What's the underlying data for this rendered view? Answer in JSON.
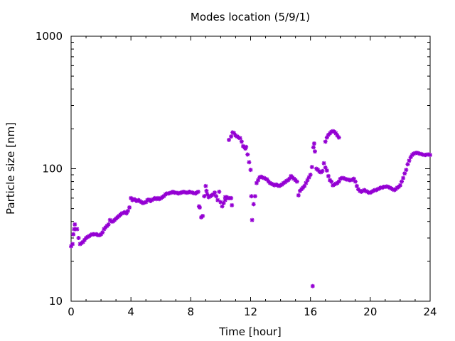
{
  "chart_data": {
    "type": "scatter",
    "title": "Modes location (5/9/1)",
    "xlabel": "Time [hour]",
    "ylabel": "Particle size [nm]",
    "xlim": [
      0,
      24
    ],
    "ylim": [
      10,
      1000
    ],
    "yscale": "log",
    "xticks": [
      0,
      4,
      8,
      12,
      16,
      20,
      24
    ],
    "xtick_labels": [
      "0",
      "4",
      "8",
      "12",
      "16",
      "20",
      "24"
    ],
    "yticks": [
      10,
      100,
      1000
    ],
    "ytick_labels": [
      "10",
      "100",
      "1000"
    ],
    "grid": false,
    "legend": "none",
    "colors": {
      "marker": "#9400d3",
      "axes": "#000000",
      "background": "#ffffff"
    },
    "series": [
      {
        "points": [
          [
            0.0,
            26
          ],
          [
            0.1,
            27
          ],
          [
            0.15,
            32
          ],
          [
            0.2,
            35
          ],
          [
            0.25,
            38
          ],
          [
            0.3,
            35
          ],
          [
            0.4,
            35
          ],
          [
            0.5,
            30
          ],
          [
            0.6,
            27
          ],
          [
            0.7,
            27.5
          ],
          [
            0.8,
            28
          ],
          [
            0.9,
            29
          ],
          [
            1.0,
            30
          ],
          [
            1.1,
            30.5
          ],
          [
            1.2,
            31
          ],
          [
            1.3,
            31.5
          ],
          [
            1.4,
            32
          ],
          [
            1.5,
            32
          ],
          [
            1.6,
            32
          ],
          [
            1.7,
            32
          ],
          [
            1.8,
            31.5
          ],
          [
            1.9,
            31.5
          ],
          [
            2.0,
            32
          ],
          [
            2.1,
            33
          ],
          [
            2.2,
            35
          ],
          [
            2.3,
            36
          ],
          [
            2.4,
            37
          ],
          [
            2.5,
            38
          ],
          [
            2.6,
            41
          ],
          [
            2.7,
            40
          ],
          [
            2.8,
            40
          ],
          [
            2.9,
            41
          ],
          [
            3.0,
            42
          ],
          [
            3.1,
            43
          ],
          [
            3.2,
            44
          ],
          [
            3.3,
            45
          ],
          [
            3.4,
            46
          ],
          [
            3.5,
            46.5
          ],
          [
            3.6,
            47
          ],
          [
            3.7,
            46
          ],
          [
            3.8,
            48
          ],
          [
            3.9,
            51
          ],
          [
            4.0,
            60
          ],
          [
            4.1,
            58
          ],
          [
            4.2,
            59
          ],
          [
            4.3,
            58
          ],
          [
            4.4,
            57
          ],
          [
            4.5,
            58
          ],
          [
            4.6,
            57
          ],
          [
            4.7,
            56
          ],
          [
            4.8,
            55
          ],
          [
            4.9,
            55.5
          ],
          [
            5.0,
            56
          ],
          [
            5.1,
            58
          ],
          [
            5.2,
            58.5
          ],
          [
            5.3,
            57
          ],
          [
            5.4,
            58
          ],
          [
            5.5,
            59
          ],
          [
            5.6,
            60
          ],
          [
            5.7,
            59
          ],
          [
            5.8,
            60
          ],
          [
            5.9,
            59
          ],
          [
            6.0,
            60
          ],
          [
            6.1,
            61
          ],
          [
            6.2,
            62
          ],
          [
            6.3,
            64
          ],
          [
            6.4,
            65
          ],
          [
            6.5,
            65
          ],
          [
            6.6,
            65.5
          ],
          [
            6.7,
            66
          ],
          [
            6.8,
            67
          ],
          [
            6.9,
            66
          ],
          [
            7.0,
            66
          ],
          [
            7.1,
            65.5
          ],
          [
            7.2,
            65
          ],
          [
            7.3,
            66
          ],
          [
            7.4,
            66
          ],
          [
            7.5,
            67
          ],
          [
            7.6,
            66.5
          ],
          [
            7.7,
            66
          ],
          [
            7.8,
            66
          ],
          [
            7.9,
            67
          ],
          [
            8.0,
            66.5
          ],
          [
            8.1,
            66
          ],
          [
            8.2,
            65.5
          ],
          [
            8.3,
            65
          ],
          [
            8.4,
            66
          ],
          [
            8.5,
            67
          ],
          [
            8.55,
            52
          ],
          [
            8.6,
            51
          ],
          [
            8.7,
            43
          ],
          [
            8.8,
            44
          ],
          [
            8.9,
            62
          ],
          [
            9.0,
            74
          ],
          [
            9.05,
            68
          ],
          [
            9.1,
            64
          ],
          [
            9.2,
            61
          ],
          [
            9.3,
            62
          ],
          [
            9.4,
            63
          ],
          [
            9.5,
            64
          ],
          [
            9.6,
            66
          ],
          [
            9.7,
            62
          ],
          [
            9.8,
            58
          ],
          [
            9.9,
            67
          ],
          [
            10.0,
            56
          ],
          [
            10.1,
            52
          ],
          [
            10.2,
            55
          ],
          [
            10.3,
            61
          ],
          [
            10.4,
            61
          ],
          [
            10.5,
            60
          ],
          [
            10.6,
            60
          ],
          [
            10.7,
            60
          ],
          [
            10.75,
            53
          ],
          [
            10.3,
            58
          ],
          [
            10.55,
            165
          ],
          [
            10.7,
            175
          ],
          [
            10.8,
            188
          ],
          [
            10.9,
            185
          ],
          [
            11.0,
            178
          ],
          [
            11.1,
            175
          ],
          [
            11.2,
            172
          ],
          [
            11.3,
            170
          ],
          [
            11.4,
            160
          ],
          [
            11.5,
            148
          ],
          [
            11.6,
            145
          ],
          [
            11.65,
            142
          ],
          [
            11.7,
            146
          ],
          [
            11.8,
            128
          ],
          [
            11.9,
            112
          ],
          [
            12.0,
            98
          ],
          [
            12.05,
            62
          ],
          [
            12.1,
            41
          ],
          [
            12.2,
            54
          ],
          [
            12.3,
            62
          ],
          [
            12.4,
            78
          ],
          [
            12.5,
            82
          ],
          [
            12.6,
            86
          ],
          [
            12.7,
            87
          ],
          [
            12.8,
            86
          ],
          [
            12.9,
            85
          ],
          [
            13.0,
            84
          ],
          [
            13.1,
            83
          ],
          [
            13.2,
            80
          ],
          [
            13.3,
            78
          ],
          [
            13.4,
            77
          ],
          [
            13.5,
            76
          ],
          [
            13.6,
            75
          ],
          [
            13.7,
            76
          ],
          [
            13.8,
            75
          ],
          [
            13.9,
            74
          ],
          [
            14.0,
            75
          ],
          [
            14.1,
            76
          ],
          [
            14.2,
            78
          ],
          [
            14.3,
            79
          ],
          [
            14.4,
            81
          ],
          [
            14.5,
            82
          ],
          [
            14.6,
            84
          ],
          [
            14.7,
            88
          ],
          [
            14.8,
            86
          ],
          [
            14.9,
            84
          ],
          [
            15.0,
            82
          ],
          [
            15.1,
            80
          ],
          [
            15.2,
            63
          ],
          [
            15.3,
            68
          ],
          [
            15.4,
            70
          ],
          [
            15.5,
            72
          ],
          [
            15.6,
            74
          ],
          [
            15.7,
            78
          ],
          [
            15.8,
            82
          ],
          [
            15.9,
            86
          ],
          [
            16.0,
            90
          ],
          [
            16.1,
            103
          ],
          [
            16.15,
            13
          ],
          [
            16.2,
            145
          ],
          [
            16.25,
            155
          ],
          [
            16.3,
            135
          ],
          [
            16.4,
            100
          ],
          [
            16.5,
            98
          ],
          [
            16.6,
            95
          ],
          [
            16.7,
            94
          ],
          [
            16.8,
            96
          ],
          [
            16.9,
            110
          ],
          [
            17.0,
            102
          ],
          [
            17.1,
            97
          ],
          [
            17.2,
            88
          ],
          [
            17.3,
            82
          ],
          [
            17.4,
            80
          ],
          [
            17.5,
            75
          ],
          [
            17.6,
            76
          ],
          [
            17.7,
            77
          ],
          [
            17.8,
            78
          ],
          [
            17.9,
            80
          ],
          [
            18.0,
            84
          ],
          [
            18.1,
            85
          ],
          [
            18.2,
            85
          ],
          [
            18.3,
            84
          ],
          [
            18.4,
            83
          ],
          [
            18.5,
            83
          ],
          [
            18.6,
            82
          ],
          [
            18.7,
            82
          ],
          [
            18.8,
            83
          ],
          [
            18.9,
            84
          ],
          [
            19.0,
            80
          ],
          [
            19.1,
            74
          ],
          [
            19.2,
            70
          ],
          [
            19.3,
            68
          ],
          [
            19.4,
            67
          ],
          [
            19.5,
            68
          ],
          [
            19.6,
            69
          ],
          [
            19.7,
            68
          ],
          [
            19.8,
            67
          ],
          [
            19.9,
            66
          ],
          [
            20.0,
            66
          ],
          [
            20.1,
            67
          ],
          [
            20.2,
            68
          ],
          [
            20.3,
            69
          ],
          [
            20.4,
            69
          ],
          [
            20.5,
            70
          ],
          [
            20.6,
            71
          ],
          [
            20.7,
            72
          ],
          [
            20.8,
            72
          ],
          [
            20.9,
            73
          ],
          [
            21.0,
            73
          ],
          [
            21.1,
            73.5
          ],
          [
            21.2,
            73
          ],
          [
            21.3,
            72
          ],
          [
            21.4,
            71
          ],
          [
            21.5,
            70
          ],
          [
            21.6,
            69
          ],
          [
            21.7,
            70
          ],
          [
            21.8,
            72
          ],
          [
            21.9,
            73
          ],
          [
            22.0,
            75
          ],
          [
            22.1,
            80
          ],
          [
            22.2,
            85
          ],
          [
            22.3,
            92
          ],
          [
            22.4,
            98
          ],
          [
            22.5,
            108
          ],
          [
            22.6,
            115
          ],
          [
            22.7,
            122
          ],
          [
            22.8,
            127
          ],
          [
            22.9,
            130
          ],
          [
            23.0,
            131
          ],
          [
            23.1,
            132
          ],
          [
            23.2,
            131
          ],
          [
            23.3,
            130
          ],
          [
            23.4,
            129
          ],
          [
            23.5,
            128
          ],
          [
            23.6,
            127
          ],
          [
            23.7,
            127
          ],
          [
            23.8,
            128
          ],
          [
            23.9,
            128
          ],
          [
            24.0,
            127
          ],
          [
            17.2,
            180
          ],
          [
            17.3,
            185
          ],
          [
            17.4,
            190
          ],
          [
            17.5,
            192
          ],
          [
            17.6,
            190
          ],
          [
            17.7,
            185
          ],
          [
            17.8,
            178
          ],
          [
            17.9,
            172
          ],
          [
            17.0,
            160
          ],
          [
            17.1,
            172
          ]
        ]
      }
    ]
  }
}
